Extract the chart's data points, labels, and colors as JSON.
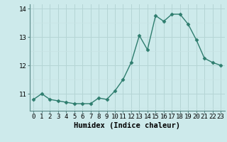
{
  "x": [
    0,
    1,
    2,
    3,
    4,
    5,
    6,
    7,
    8,
    9,
    10,
    11,
    12,
    13,
    14,
    15,
    16,
    17,
    18,
    19,
    20,
    21,
    22,
    23
  ],
  "y": [
    10.8,
    11.0,
    10.8,
    10.75,
    10.7,
    10.65,
    10.65,
    10.65,
    10.85,
    10.8,
    11.1,
    11.5,
    12.1,
    13.05,
    12.55,
    13.75,
    13.55,
    13.8,
    13.8,
    13.45,
    12.9,
    12.25,
    12.1,
    12.0
  ],
  "line_color": "#2e7d6e",
  "marker": "D",
  "marker_size": 2.5,
  "bg_color": "#cdeaeb",
  "grid_color_major": "#b5d5d5",
  "grid_color_minor": "#c8e4e4",
  "xlabel": "Humidex (Indice chaleur)",
  "ylim": [
    10.4,
    14.15
  ],
  "xlim": [
    -0.5,
    23.5
  ],
  "yticks": [
    11,
    12,
    13,
    14
  ],
  "xticks": [
    0,
    1,
    2,
    3,
    4,
    5,
    6,
    7,
    8,
    9,
    10,
    11,
    12,
    13,
    14,
    15,
    16,
    17,
    18,
    19,
    20,
    21,
    22,
    23
  ],
  "tick_fontsize": 6.5,
  "xlabel_fontsize": 7.5,
  "linewidth": 1.0
}
